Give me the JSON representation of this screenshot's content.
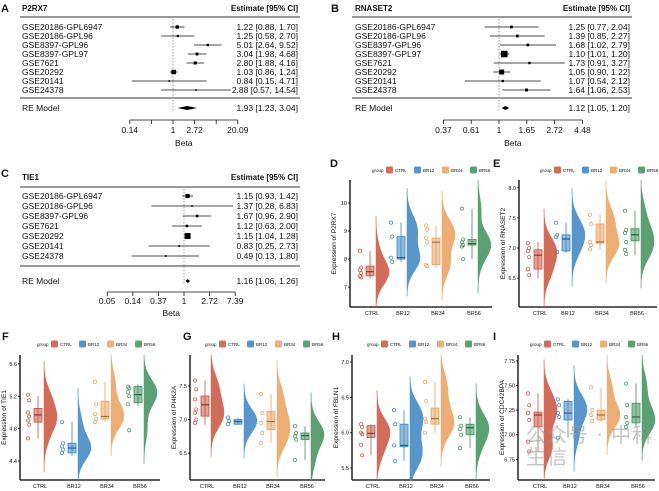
{
  "figure": {
    "watermark": "公众号 · 中科生信"
  },
  "chart_data": [
    {
      "panel": "A",
      "type": "forest",
      "title": "P2RX7",
      "header": "Estimate [95% CI]",
      "xlabel": "Beta",
      "scale": "log",
      "ticks_ln": [
        -2,
        -1,
        0,
        1,
        2,
        3
      ],
      "tick_labels": [
        "0.14",
        "",
        "1",
        "2.72",
        "",
        "20.09"
      ],
      "studies": [
        {
          "name": "GSE20186-GPL6947",
          "est": 1.22,
          "lo": 0.88,
          "hi": 1.7,
          "label": "1.22 [0.88, 1.70]"
        },
        {
          "name": "GSE20186-GPL96",
          "est": 1.25,
          "lo": 0.58,
          "hi": 2.7,
          "label": "1.25 [0.58, 2.70]"
        },
        {
          "name": "GSE8397-GPL96",
          "est": 5.01,
          "lo": 2.64,
          "hi": 9.52,
          "label": "5.01 [2.64, 9.52]"
        },
        {
          "name": "GSE8397-GPL97",
          "est": 3.04,
          "lo": 1.98,
          "hi": 4.68,
          "label": "3.04 [1.98, 4.68]"
        },
        {
          "name": "GSE7621",
          "est": 2.8,
          "lo": 1.88,
          "hi": 4.16,
          "label": "2.80 [1.88, 4.16]"
        },
        {
          "name": "GSE20292",
          "est": 1.03,
          "lo": 0.86,
          "hi": 1.24,
          "label": "1.03 [0.86, 1.24]"
        },
        {
          "name": "GSE20141",
          "est": 0.84,
          "lo": 0.15,
          "hi": 4.71,
          "label": "0.84 [0.15, 4.71]"
        },
        {
          "name": "GSE24378",
          "est": 2.88,
          "lo": 0.57,
          "hi": 14.54,
          "label": "2.88 [0.57, 14.54]"
        }
      ],
      "re_model": {
        "name": "RE Model",
        "est": 1.93,
        "lo": 1.23,
        "hi": 3.04,
        "label": "1.93 [1.23, 3.04]"
      }
    },
    {
      "panel": "B",
      "type": "forest",
      "title": "RNASET2",
      "header": "Estimate [95% CI]",
      "xlabel": "Beta",
      "scale": "log",
      "ticks_ln": [
        -1,
        -0.5,
        0,
        0.5,
        1,
        1.5
      ],
      "tick_labels": [
        "0.37",
        "0.61",
        "1",
        "1.65",
        "2.72",
        "4.48"
      ],
      "studies": [
        {
          "name": "GSE20186-GPL6947",
          "est": 1.25,
          "lo": 0.77,
          "hi": 2.04,
          "label": "1.25 [0.77, 2.04]"
        },
        {
          "name": "GSE20186-GPL96",
          "est": 1.39,
          "lo": 0.85,
          "hi": 2.27,
          "label": "1.39 [0.85, 2.27]"
        },
        {
          "name": "GSE8397-GPL96",
          "est": 1.68,
          "lo": 1.02,
          "hi": 2.79,
          "label": "1.68 [1.02, 2.79]"
        },
        {
          "name": "GSE8397-GPL97",
          "est": 1.1,
          "lo": 1.01,
          "hi": 1.2,
          "label": "1.10 [1.01, 1.20]"
        },
        {
          "name": "GSE7621",
          "est": 1.73,
          "lo": 0.91,
          "hi": 3.27,
          "label": "1.73 [0.91, 3.27]"
        },
        {
          "name": "GSE20292",
          "est": 1.05,
          "lo": 0.9,
          "hi": 1.22,
          "label": "1.05 [0.90, 1.22]"
        },
        {
          "name": "GSE20141",
          "est": 1.07,
          "lo": 0.54,
          "hi": 2.12,
          "label": "1.07 [0.54, 2.12]"
        },
        {
          "name": "GSE24378",
          "est": 1.64,
          "lo": 1.06,
          "hi": 2.53,
          "label": "1.64 [1.06, 2.53]"
        }
      ],
      "re_model": {
        "name": "RE Model",
        "est": 1.12,
        "lo": 1.05,
        "hi": 1.2,
        "label": "1.12 [1.05, 1.20]"
      }
    },
    {
      "panel": "C",
      "type": "forest",
      "title": "TIE1",
      "header": "Estimate [95% CI]",
      "xlabel": "Beta",
      "scale": "log",
      "ticks_ln": [
        -3,
        -2,
        -1,
        0,
        1,
        2
      ],
      "tick_labels": [
        "0.05",
        "0.14",
        "0.37",
        "1",
        "2.72",
        "7.39"
      ],
      "studies": [
        {
          "name": "GSE20186-GPL6947",
          "est": 1.15,
          "lo": 0.93,
          "hi": 1.42,
          "label": "1.15 [0.93, 1.42]"
        },
        {
          "name": "GSE20186-GPL96",
          "est": 1.37,
          "lo": 0.28,
          "hi": 6.83,
          "label": "1.37 [0.28, 6.83]"
        },
        {
          "name": "GSE8397-GPL96",
          "est": 1.67,
          "lo": 0.96,
          "hi": 2.9,
          "label": "1.67 [0.96, 2.90]"
        },
        {
          "name": "GSE7621",
          "est": 1.12,
          "lo": 0.63,
          "hi": 2.0,
          "label": "1.12 [0.63, 2.00]"
        },
        {
          "name": "GSE20292",
          "est": 1.15,
          "lo": 1.04,
          "hi": 1.28,
          "label": "1.15 [1.04, 1.28]"
        },
        {
          "name": "GSE20141",
          "est": 0.83,
          "lo": 0.25,
          "hi": 2.73,
          "label": "0.83 [0.25, 2.73]"
        },
        {
          "name": "GSE24378",
          "est": 0.49,
          "lo": 0.13,
          "hi": 1.8,
          "label": "0.49 [0.13, 1.80]"
        }
      ],
      "re_model": {
        "name": "RE Model",
        "est": 1.16,
        "lo": 1.06,
        "hi": 1.26,
        "label": "1.16 [1.06, 1.26]"
      }
    },
    {
      "panel": "D",
      "type": "raincloud",
      "ylabel": "Expression of P2RX7",
      "legend_title": "group",
      "ylim": [
        6.29,
        10.82
      ],
      "yticks": [
        7,
        8,
        9,
        10
      ],
      "ytick_labels": [
        "7",
        "8",
        "9",
        "10"
      ],
      "groups": [
        {
          "name": "CTRL",
          "color": "#c9533f",
          "box": [
            7.3,
            7.4,
            7.55,
            7.75,
            8.3
          ],
          "points": [
            8.3,
            7.7,
            7.6,
            7.5,
            7.4,
            7.35
          ]
        },
        {
          "name": "BR12",
          "color": "#3b84c1",
          "box": [
            7.9,
            8.0,
            8.05,
            8.8,
            9.3
          ],
          "points": [
            9.3,
            8.8,
            8.05,
            7.9
          ]
        },
        {
          "name": "BR34",
          "color": "#e9a15c",
          "box": [
            7.7,
            7.8,
            8.6,
            8.75,
            9.2
          ],
          "points": [
            9.2,
            9.05,
            8.75,
            8.6,
            7.8,
            7.75
          ]
        },
        {
          "name": "BR56",
          "color": "#3f8f5b",
          "box": [
            8.0,
            8.5,
            8.55,
            8.7,
            9.8
          ],
          "points": [
            9.8,
            8.7,
            8.6,
            8.5,
            8.45,
            8.0
          ]
        }
      ]
    },
    {
      "panel": "E",
      "type": "raincloud",
      "ylabel": "Expression of RNASET2",
      "legend_title": "group",
      "ylim": [
        6.02,
        8.13
      ],
      "yticks": [
        6.5,
        7.0,
        7.5,
        8.0
      ],
      "ytick_labels": [
        "6.5",
        "7.0",
        "7.5",
        "8.0"
      ],
      "groups": [
        {
          "name": "CTRL",
          "color": "#c9533f",
          "box": [
            6.5,
            6.65,
            6.88,
            6.97,
            7.1
          ],
          "points": [
            7.08,
            7.0,
            6.95,
            6.85,
            6.65,
            6.55
          ]
        },
        {
          "name": "BR12",
          "color": "#3b84c1",
          "box": [
            6.92,
            6.95,
            7.15,
            7.22,
            7.42
          ],
          "points": [
            7.42,
            7.22,
            7.18,
            6.93
          ]
        },
        {
          "name": "BR34",
          "color": "#e9a15c",
          "box": [
            6.97,
            7.08,
            7.1,
            7.4,
            7.55
          ],
          "points": [
            7.55,
            7.4,
            7.1,
            7.05,
            6.98
          ]
        },
        {
          "name": "BR56",
          "color": "#3f8f5b",
          "box": [
            6.88,
            7.12,
            7.22,
            7.32,
            7.62
          ],
          "points": [
            7.62,
            7.3,
            7.25,
            7.1,
            6.97,
            6.9
          ]
        }
      ]
    },
    {
      "panel": "F",
      "type": "raincloud",
      "ylabel": "Expression of TIE1",
      "legend_title": "group",
      "ylim": [
        4.165,
        5.71
      ],
      "yticks": [
        4.4,
        4.8,
        5.2,
        5.6
      ],
      "ytick_labels": [
        "4.4",
        "4.8",
        "5.2",
        "5.6"
      ],
      "groups": [
        {
          "name": "CTRL",
          "color": "#c9533f",
          "box": [
            4.68,
            4.88,
            4.97,
            5.05,
            5.2
          ],
          "points": [
            5.22,
            5.15,
            5.0,
            4.95,
            4.9,
            4.85,
            4.68
          ]
        },
        {
          "name": "BR12",
          "color": "#3b84c1",
          "box": [
            4.46,
            4.5,
            4.56,
            4.62,
            4.88
          ],
          "points": [
            4.88,
            4.62,
            4.58,
            4.54,
            4.5
          ]
        },
        {
          "name": "BR34",
          "color": "#e9a15c",
          "box": [
            4.88,
            4.92,
            4.95,
            5.14,
            5.38
          ],
          "points": [
            5.38,
            5.1,
            4.98,
            4.92,
            4.88
          ]
        },
        {
          "name": "BR56",
          "color": "#3f8f5b",
          "box": [
            5.08,
            5.12,
            5.22,
            5.32,
            5.35
          ],
          "points": [
            5.32,
            5.3,
            5.25,
            5.2,
            5.1,
            4.78
          ]
        }
      ]
    },
    {
      "panel": "G",
      "type": "raincloud",
      "ylabel": "Expression of PI4K2A",
      "legend_title": "group",
      "ylim": [
        6.1,
        7.96
      ],
      "yticks": [
        6.5,
        7.0,
        7.5
      ],
      "ytick_labels": [
        "6.5",
        "7.0",
        "7.5"
      ],
      "groups": [
        {
          "name": "CTRL",
          "color": "#c9533f",
          "box": [
            6.92,
            7.05,
            7.22,
            7.35,
            7.58
          ],
          "points": [
            7.58,
            7.45,
            7.3,
            7.15,
            7.1,
            7.0,
            6.95
          ]
        },
        {
          "name": "BR12",
          "color": "#3b84c1",
          "box": [
            6.92,
            6.93,
            6.97,
            7.0,
            7.03
          ],
          "points": [
            7.03,
            6.98,
            6.93
          ]
        },
        {
          "name": "BR34",
          "color": "#e9a15c",
          "box": [
            6.65,
            6.85,
            6.97,
            7.12,
            7.38
          ],
          "points": [
            7.38,
            7.1,
            6.95,
            6.8,
            6.65
          ]
        },
        {
          "name": "BR56",
          "color": "#3f8f5b",
          "box": [
            6.4,
            6.7,
            6.76,
            6.8,
            6.9
          ],
          "points": [
            6.9,
            6.8,
            6.75,
            6.7,
            6.4
          ]
        }
      ]
    },
    {
      "panel": "H",
      "type": "raincloud",
      "ylabel": "Expression of FBLN1",
      "legend_title": "group",
      "ylim": [
        5.33,
        7.1
      ],
      "yticks": [
        5.5,
        6.0,
        6.5,
        7.0
      ],
      "ytick_labels": [
        "5.5",
        "6.0",
        "6.5",
        "7.0"
      ],
      "groups": [
        {
          "name": "CTRL",
          "color": "#c9533f",
          "box": [
            5.68,
            5.93,
            5.99,
            6.1,
            6.12
          ],
          "points": [
            6.12,
            6.08,
            6.0,
            5.98,
            5.83,
            5.68
          ]
        },
        {
          "name": "BR12",
          "color": "#3b84c1",
          "box": [
            5.6,
            5.8,
            5.82,
            6.12,
            6.32
          ],
          "points": [
            6.32,
            6.12,
            5.82,
            5.6
          ]
        },
        {
          "name": "BR34",
          "color": "#e9a15c",
          "box": [
            6.0,
            6.12,
            6.2,
            6.35,
            6.72
          ],
          "points": [
            6.72,
            6.45,
            6.2,
            6.15,
            6.0
          ]
        },
        {
          "name": "BR56",
          "color": "#3f8f5b",
          "box": [
            5.78,
            5.97,
            6.07,
            6.12,
            6.22
          ],
          "points": [
            6.22,
            6.1,
            6.05,
            5.97,
            5.78
          ]
        }
      ]
    },
    {
      "panel": "I",
      "type": "raincloud",
      "ylabel": "Expression of CDC42BPA",
      "legend_title": "group",
      "ylim": [
        6.54,
        7.81
      ],
      "yticks": [
        6.75,
        7.0,
        7.25,
        7.5,
        7.75
      ],
      "ytick_labels": [
        "6.75",
        "7.00",
        "7.25",
        "7.50",
        "7.75"
      ],
      "groups": [
        {
          "name": "CTRL",
          "color": "#c9533f",
          "box": [
            6.83,
            7.08,
            7.2,
            7.23,
            7.42
          ],
          "points": [
            7.42,
            7.3,
            7.22,
            7.15,
            6.93,
            6.83
          ]
        },
        {
          "name": "BR12",
          "color": "#3b84c1",
          "box": [
            6.97,
            7.15,
            7.22,
            7.34,
            7.36
          ],
          "points": [
            7.36,
            7.3,
            7.22,
            7.18,
            6.97
          ]
        },
        {
          "name": "BR34",
          "color": "#e9a15c",
          "box": [
            7.13,
            7.15,
            7.2,
            7.25,
            7.48
          ],
          "points": [
            7.48,
            7.25,
            7.2,
            7.14
          ]
        },
        {
          "name": "BR56",
          "color": "#3f8f5b",
          "box": [
            7.08,
            7.12,
            7.18,
            7.32,
            7.52
          ],
          "points": [
            7.52,
            7.3,
            7.18,
            7.12,
            7.08
          ]
        }
      ]
    }
  ]
}
